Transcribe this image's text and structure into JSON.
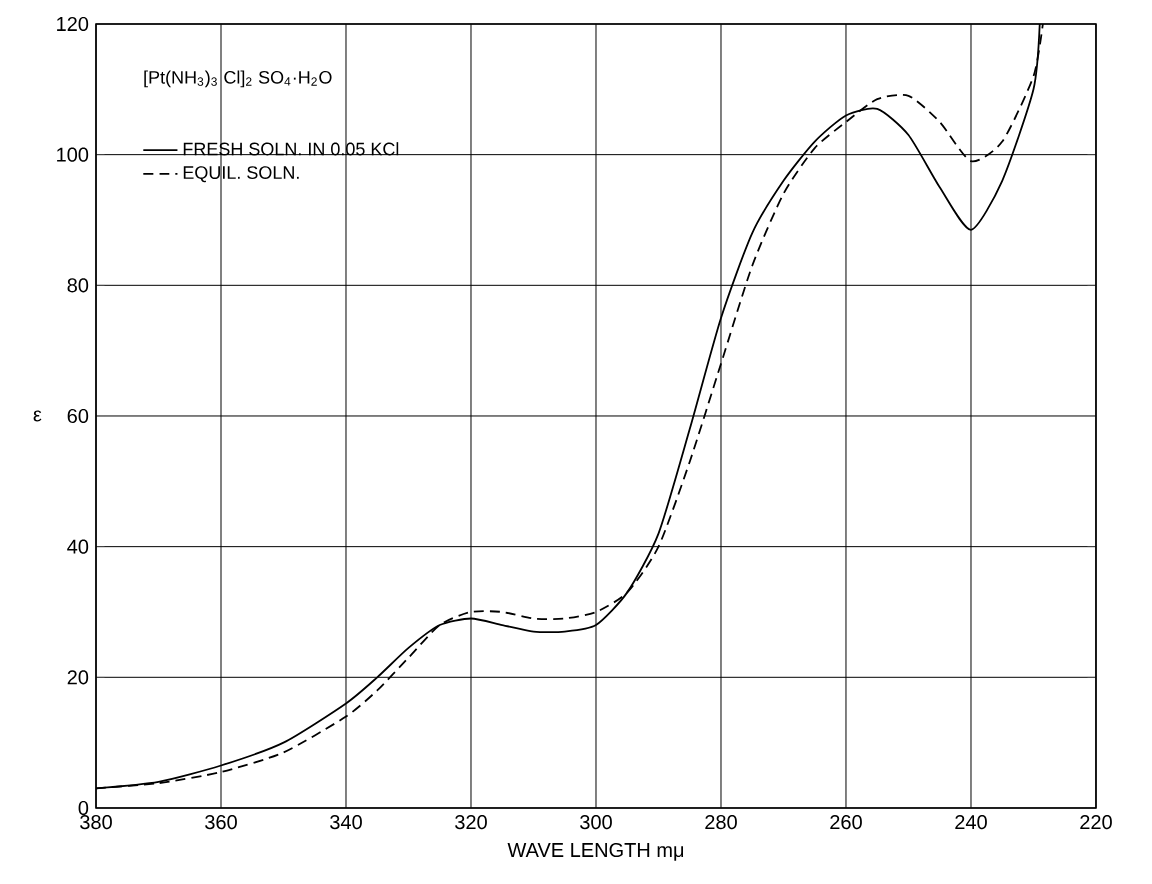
{
  "chart_data": {
    "type": "line",
    "xlabel": "WAVE LENGTH  mμ",
    "ylabel": "ε",
    "annotations": [
      "[Pt(NH$_{3}$)$_{3}$ Cl]$_{2}$ SO$_{4}$·H$_{2}$O"
    ],
    "xlim": [
      380,
      220
    ],
    "ylim": [
      0,
      120
    ],
    "xticks": [
      380,
      360,
      340,
      320,
      300,
      280,
      260,
      240,
      220
    ],
    "yticks": [
      0,
      20,
      40,
      60,
      80,
      100,
      120
    ],
    "grid": true,
    "legend": "top left",
    "series": [
      {
        "name": "FRESH  SOLN. IN   0.05 KCl",
        "color": "#000000",
        "line_style": "solid",
        "x": [
          380,
          370,
          360,
          350,
          340,
          335,
          330,
          325,
          320,
          315,
          310,
          305,
          300,
          295,
          290,
          285,
          280,
          275,
          270,
          265,
          260,
          255,
          250,
          245,
          240,
          235,
          230,
          229
        ],
        "values": [
          3,
          4,
          6.5,
          10,
          16,
          20,
          24.5,
          28,
          29,
          28,
          27,
          27,
          28,
          33,
          42,
          58,
          75,
          88,
          96,
          102,
          106,
          107,
          103,
          95,
          88.5,
          96,
          110,
          120
        ]
      },
      {
        "name": "EQUIL.  SOLN.",
        "color": "#000000",
        "line_style": "dashed",
        "x": [
          380,
          370,
          360,
          350,
          340,
          335,
          330,
          325,
          320,
          315,
          310,
          305,
          300,
          295,
          290,
          285,
          280,
          275,
          270,
          265,
          260,
          255,
          250,
          245,
          240,
          235,
          230,
          228.5
        ],
        "values": [
          3,
          3.8,
          5.5,
          8.5,
          14,
          18,
          23,
          28,
          30,
          30,
          29,
          29,
          30,
          33,
          40,
          53,
          68,
          83,
          94,
          101,
          105,
          108.5,
          109,
          105,
          99,
          102,
          112,
          120
        ]
      }
    ]
  }
}
